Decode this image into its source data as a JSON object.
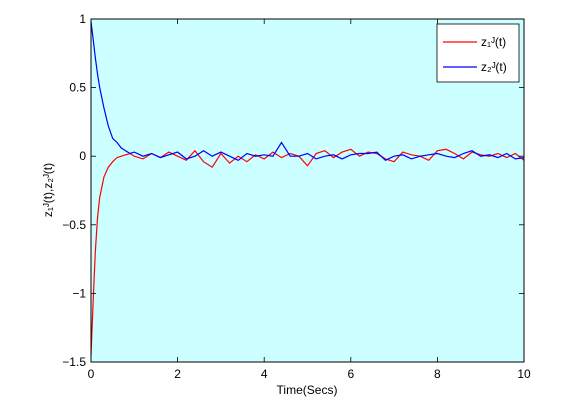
{
  "chart_data": {
    "type": "line",
    "xlabel": "Time(Secs)",
    "ylabel": "z₁ᴶ(t),z₂ᴶ(t)",
    "xlim": [
      0,
      10
    ],
    "ylim": [
      -1.5,
      1
    ],
    "xticks": [
      "0",
      "2",
      "4",
      "6",
      "8",
      "10"
    ],
    "yticks": [
      "1",
      "0.5",
      "0",
      "−0.5",
      "−1",
      "−1.5"
    ],
    "plot_background": "#ccffff",
    "grid": false,
    "legend_position": "top-right",
    "series": [
      {
        "name": "z₁ᴶ(t)",
        "color": "#ff0000",
        "x": [
          0,
          0.05,
          0.1,
          0.15,
          0.2,
          0.3,
          0.4,
          0.5,
          0.6,
          0.7,
          0.8,
          0.9,
          1.0,
          1.2,
          1.4,
          1.6,
          1.8,
          2.0,
          2.2,
          2.4,
          2.6,
          2.8,
          3.0,
          3.2,
          3.4,
          3.6,
          3.8,
          4.0,
          4.2,
          4.4,
          4.6,
          4.8,
          5.0,
          5.2,
          5.4,
          5.6,
          5.8,
          6.0,
          6.2,
          6.4,
          6.6,
          6.8,
          7.0,
          7.2,
          7.4,
          7.6,
          7.8,
          8.0,
          8.2,
          8.4,
          8.6,
          8.8,
          9.0,
          9.2,
          9.4,
          9.6,
          9.8,
          10.0
        ],
        "values": [
          -1.45,
          -1.05,
          -0.7,
          -0.45,
          -0.3,
          -0.15,
          -0.08,
          -0.04,
          -0.01,
          0.0,
          0.01,
          0.02,
          0.0,
          -0.02,
          0.02,
          -0.01,
          0.03,
          0.0,
          -0.03,
          0.04,
          -0.04,
          -0.08,
          0.02,
          -0.05,
          0.0,
          -0.04,
          0.01,
          -0.02,
          0.03,
          -0.01,
          0.02,
          0.0,
          -0.07,
          0.02,
          0.04,
          -0.01,
          0.03,
          0.05,
          0.0,
          0.03,
          0.02,
          -0.02,
          -0.04,
          0.03,
          0.01,
          0.0,
          -0.03,
          0.04,
          0.05,
          0.02,
          -0.02,
          0.03,
          0.01,
          0.0,
          0.02,
          -0.01,
          0.02,
          -0.03
        ]
      },
      {
        "name": "z₂ᴶ(t)",
        "color": "#0000ff",
        "x": [
          0,
          0.05,
          0.1,
          0.15,
          0.2,
          0.3,
          0.4,
          0.5,
          0.6,
          0.7,
          0.8,
          0.9,
          1.0,
          1.2,
          1.4,
          1.6,
          1.8,
          2.0,
          2.2,
          2.4,
          2.6,
          2.8,
          3.0,
          3.2,
          3.4,
          3.6,
          3.8,
          4.0,
          4.2,
          4.4,
          4.6,
          4.8,
          5.0,
          5.2,
          5.4,
          5.6,
          5.8,
          6.0,
          6.2,
          6.4,
          6.6,
          6.8,
          7.0,
          7.2,
          7.4,
          7.6,
          7.8,
          8.0,
          8.2,
          8.4,
          8.6,
          8.8,
          9.0,
          9.2,
          9.4,
          9.6,
          9.8,
          10.0
        ],
        "values": [
          0.98,
          0.85,
          0.72,
          0.6,
          0.5,
          0.35,
          0.22,
          0.13,
          0.1,
          0.06,
          0.04,
          0.02,
          0.03,
          0.0,
          0.02,
          -0.01,
          0.01,
          0.03,
          -0.02,
          0.0,
          0.04,
          0.0,
          0.03,
          0.0,
          -0.03,
          0.02,
          0.0,
          0.01,
          0.0,
          0.1,
          0.0,
          0.0,
          0.02,
          -0.02,
          0.0,
          0.01,
          -0.02,
          0.01,
          0.02,
          0.02,
          0.03,
          -0.03,
          0.0,
          0.01,
          -0.02,
          0.0,
          0.01,
          0.02,
          0.0,
          -0.01,
          0.02,
          0.04,
          0.0,
          0.01,
          -0.01,
          0.02,
          -0.02,
          -0.01
        ]
      }
    ]
  }
}
